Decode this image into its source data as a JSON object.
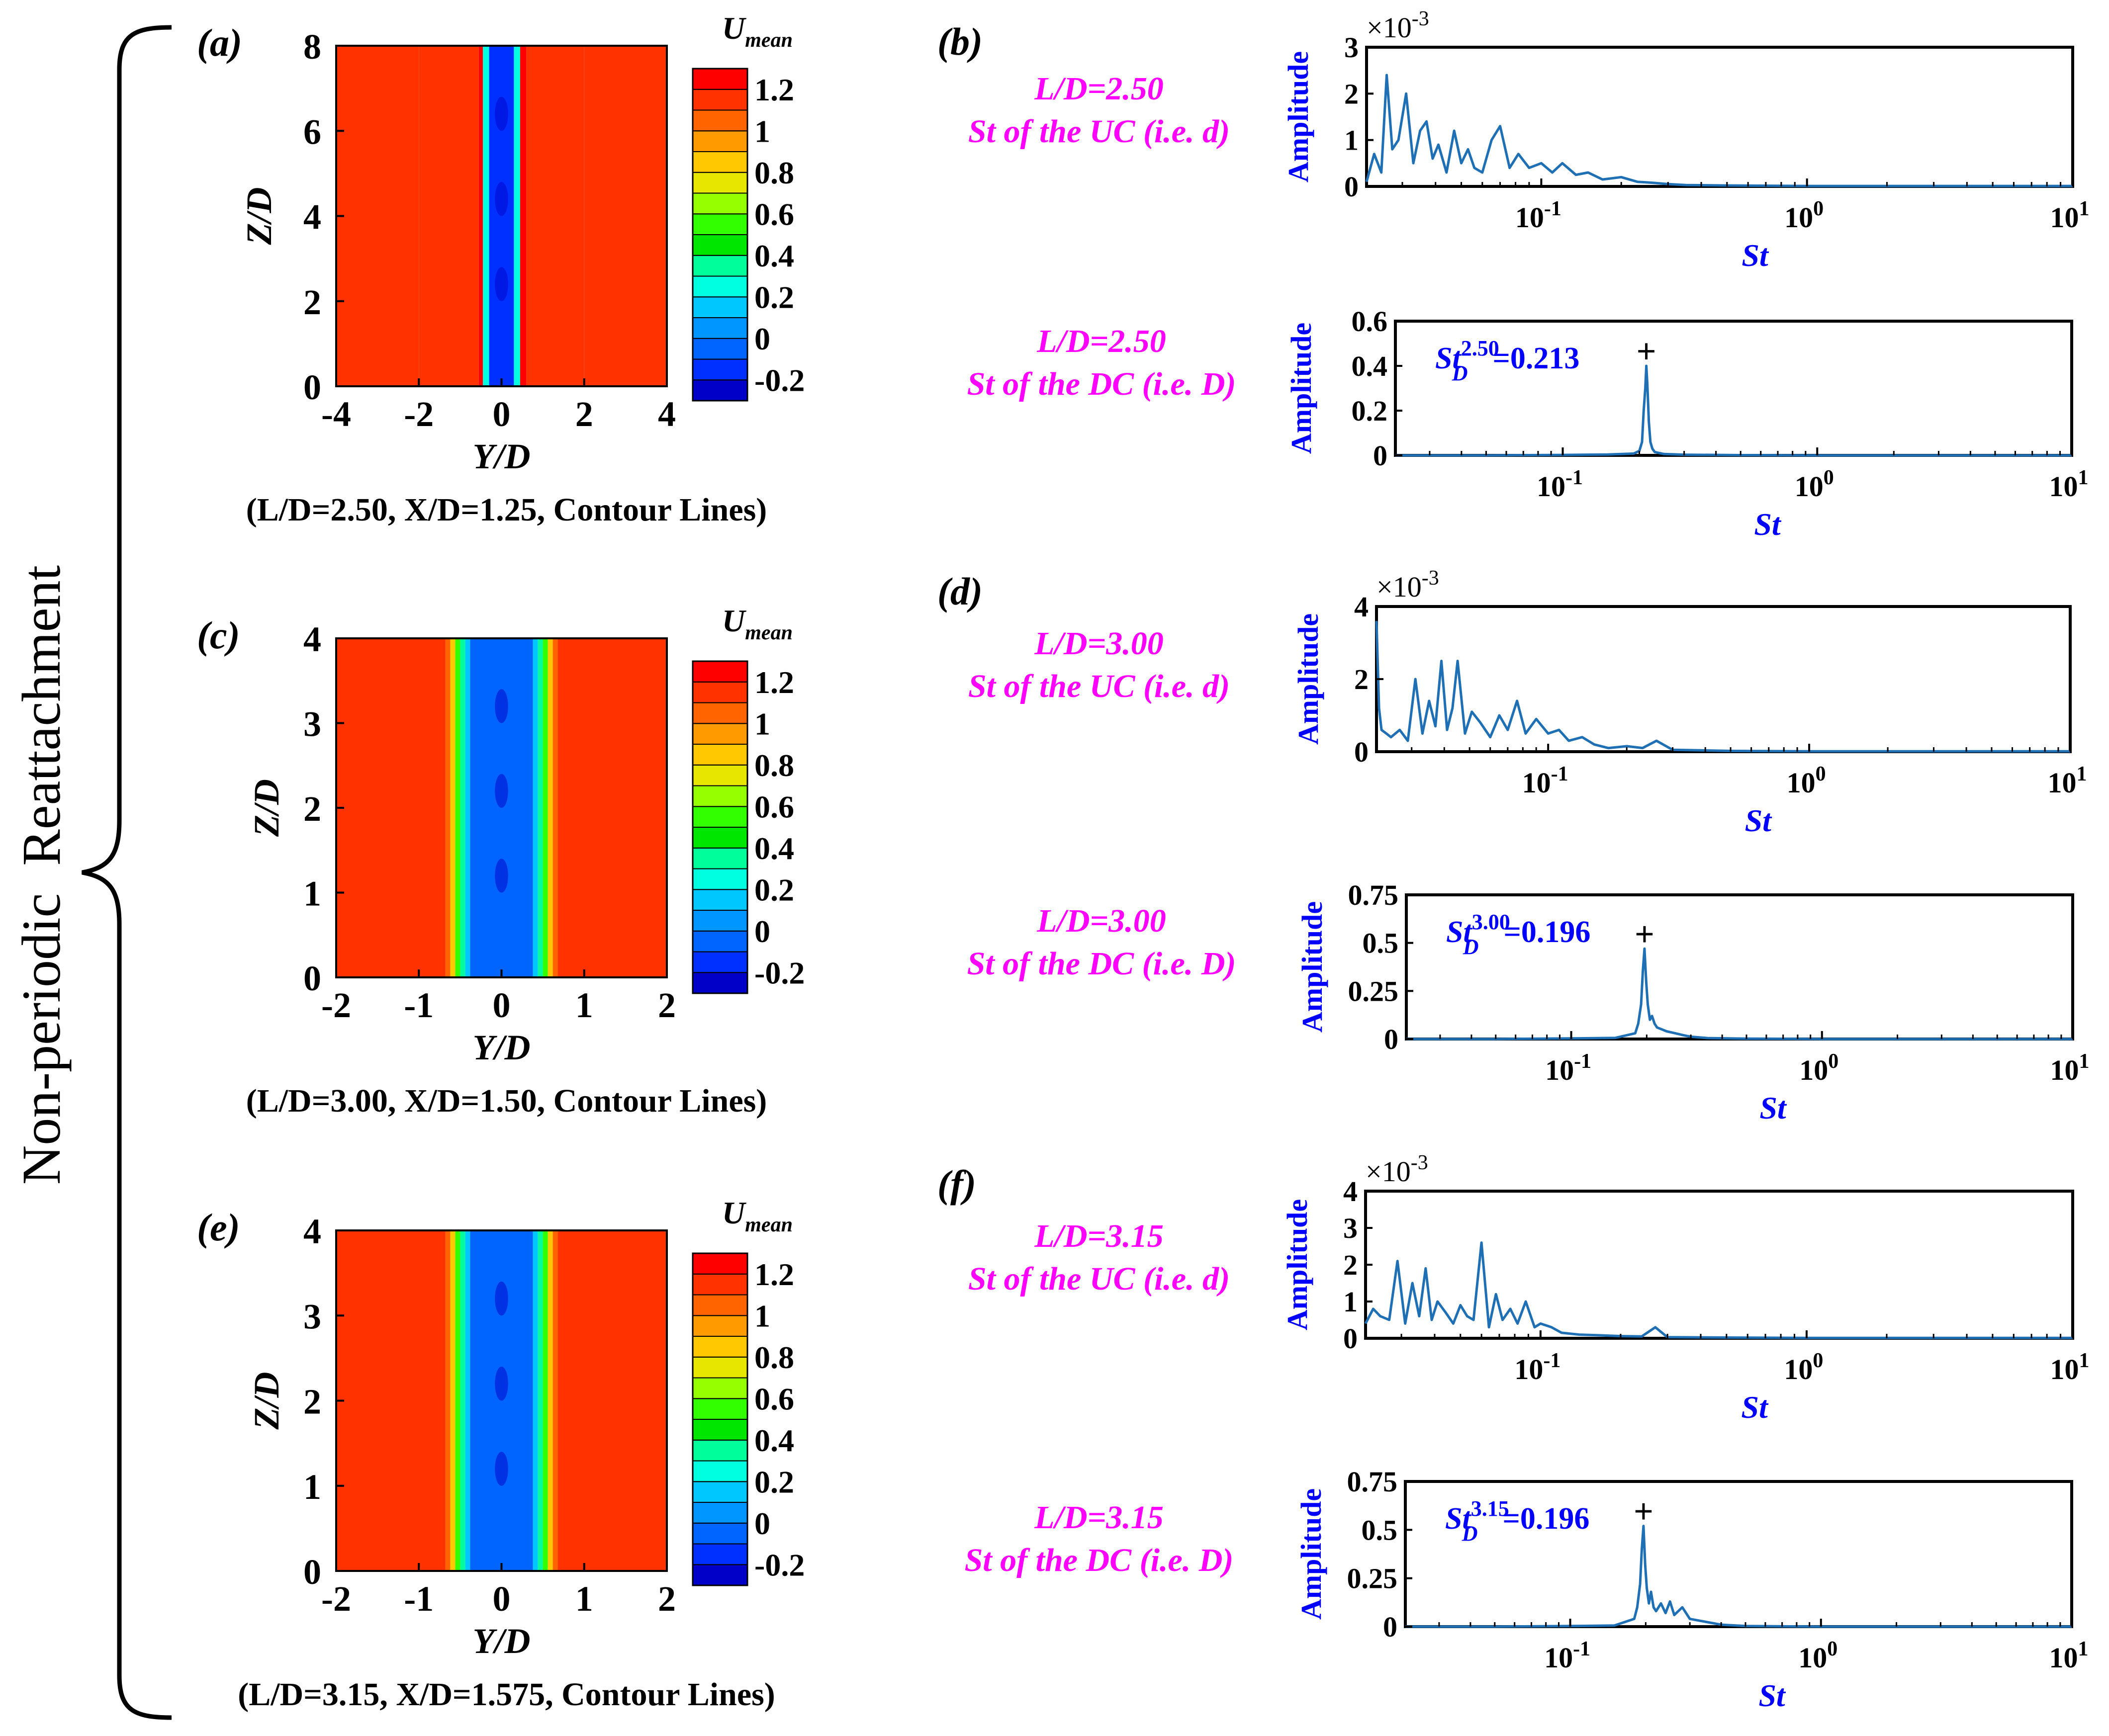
{
  "side_label": "Non-periodic  Reattachment",
  "colors": {
    "magenta": "#ff00ff",
    "blue_text": "#0000ff",
    "spectrum_line": "#1f6fb5",
    "colorbar": [
      "#0000c8",
      "#0030ff",
      "#0064ff",
      "#0096ff",
      "#00c8ff",
      "#00ffe0",
      "#00ff9b",
      "#00e600",
      "#32ff00",
      "#96ff00",
      "#e6e600",
      "#ffc800",
      "#ff9b00",
      "#ff6400",
      "#ff3200",
      "#ff0000"
    ]
  },
  "chart_data": [
    {
      "id": "a",
      "panel_label": "(a)",
      "type": "heatmap",
      "title": "",
      "xlabel": "Y/D",
      "ylabel": "Z/D",
      "xlim": [
        -4,
        4
      ],
      "ylim": [
        0,
        8
      ],
      "xticks": [
        "-4",
        "-2",
        "0",
        "2",
        "4"
      ],
      "xtick_values": [
        -4,
        -2,
        0,
        2,
        4
      ],
      "yticks": [
        "0",
        "2",
        "4",
        "6",
        "8"
      ],
      "ytick_values": [
        0,
        2,
        4,
        6,
        8
      ],
      "caption": "(L/D=2.50, X/D=1.25, Contour Lines)",
      "colorbar": {
        "label": "U",
        "label_sub": "mean",
        "ticks": [
          "1.2",
          "1",
          "0.8",
          "0.6",
          "0.4",
          "0.2",
          "0",
          "-0.2"
        ],
        "tick_values": [
          1.2,
          1.0,
          0.8,
          0.6,
          0.4,
          0.2,
          0.0,
          -0.2
        ],
        "range": [
          -0.3,
          1.3
        ],
        "levels": 16
      },
      "bands": [
        {
          "y0": -4,
          "y1": -2,
          "u": 1.12
        },
        {
          "y0": -2,
          "y1": -0.55,
          "u": 1.19
        },
        {
          "y0": -0.55,
          "y1": -0.45,
          "u": 1.3
        },
        {
          "y0": -0.45,
          "y1": -0.3,
          "u": 0.25
        },
        {
          "y0": -0.3,
          "y1": 0.3,
          "u": -0.1
        },
        {
          "y0": 0.3,
          "y1": 0.45,
          "u": 0.25
        },
        {
          "y0": 0.45,
          "y1": 0.6,
          "u": 1.3
        },
        {
          "y0": 0.6,
          "y1": 2,
          "u": 1.19
        },
        {
          "y0": 2,
          "y1": 4,
          "u": 1.12
        }
      ]
    },
    {
      "id": "c",
      "panel_label": "(c)",
      "type": "heatmap",
      "title": "",
      "xlabel": "Y/D",
      "ylabel": "Z/D",
      "xlim": [
        -2,
        2
      ],
      "ylim": [
        0,
        4
      ],
      "xticks": [
        "-2",
        "-1",
        "0",
        "1",
        "2"
      ],
      "xtick_values": [
        -2,
        -1,
        0,
        1,
        2
      ],
      "yticks": [
        "0",
        "1",
        "2",
        "3",
        "4"
      ],
      "ytick_values": [
        0,
        1,
        2,
        3,
        4
      ],
      "caption": "(L/D=3.00, X/D=1.50, Contour Lines)",
      "colorbar": {
        "label": "U",
        "label_sub": "mean",
        "ticks": [
          "1.2",
          "1",
          "0.8",
          "0.6",
          "0.4",
          "0.2",
          "0",
          "-0.2"
        ],
        "tick_values": [
          1.2,
          1.0,
          0.8,
          0.6,
          0.4,
          0.2,
          0.0,
          -0.2
        ],
        "range": [
          -0.3,
          1.3
        ],
        "levels": 16
      },
      "bands": [
        {
          "y0": -2,
          "y1": -0.68,
          "u": 1.19
        },
        {
          "y0": -0.68,
          "y1": -0.62,
          "u": 1.02
        },
        {
          "y0": -0.62,
          "y1": -0.56,
          "u": 0.85
        },
        {
          "y0": -0.56,
          "y1": -0.5,
          "u": 0.6
        },
        {
          "y0": -0.5,
          "y1": -0.44,
          "u": 0.35
        },
        {
          "y0": -0.44,
          "y1": -0.38,
          "u": 0.15
        },
        {
          "y0": -0.38,
          "y1": 0.38,
          "u": -0.05
        },
        {
          "y0": 0.38,
          "y1": 0.44,
          "u": 0.15
        },
        {
          "y0": 0.44,
          "y1": 0.5,
          "u": 0.35
        },
        {
          "y0": 0.5,
          "y1": 0.56,
          "u": 0.6
        },
        {
          "y0": 0.56,
          "y1": 0.62,
          "u": 0.85
        },
        {
          "y0": 0.62,
          "y1": 0.68,
          "u": 1.02
        },
        {
          "y0": 0.68,
          "y1": 2,
          "u": 1.19
        }
      ]
    },
    {
      "id": "e",
      "panel_label": "(e)",
      "type": "heatmap",
      "title": "",
      "xlabel": "Y/D",
      "ylabel": "Z/D",
      "xlim": [
        -2,
        2
      ],
      "ylim": [
        0,
        4
      ],
      "xticks": [
        "-2",
        "-1",
        "0",
        "1",
        "2"
      ],
      "xtick_values": [
        -2,
        -1,
        0,
        1,
        2
      ],
      "yticks": [
        "0",
        "1",
        "2",
        "3",
        "4"
      ],
      "ytick_values": [
        0,
        1,
        2,
        3,
        4
      ],
      "caption": "(L/D=3.15, X/D=1.575, Contour Lines)",
      "colorbar": {
        "label": "U",
        "label_sub": "mean",
        "ticks": [
          "1.2",
          "1",
          "0.8",
          "0.6",
          "0.4",
          "0.2",
          "0",
          "-0.2"
        ],
        "tick_values": [
          1.2,
          1.0,
          0.8,
          0.6,
          0.4,
          0.2,
          0.0,
          -0.2
        ],
        "range": [
          -0.3,
          1.3
        ],
        "levels": 16
      },
      "bands": [
        {
          "y0": -2,
          "y1": -0.68,
          "u": 1.19
        },
        {
          "y0": -0.68,
          "y1": -0.62,
          "u": 1.02
        },
        {
          "y0": -0.62,
          "y1": -0.56,
          "u": 0.85
        },
        {
          "y0": -0.56,
          "y1": -0.5,
          "u": 0.6
        },
        {
          "y0": -0.5,
          "y1": -0.44,
          "u": 0.35
        },
        {
          "y0": -0.44,
          "y1": -0.38,
          "u": 0.15
        },
        {
          "y0": -0.38,
          "y1": 0.38,
          "u": -0.05
        },
        {
          "y0": 0.38,
          "y1": 0.44,
          "u": 0.15
        },
        {
          "y0": 0.44,
          "y1": 0.5,
          "u": 0.35
        },
        {
          "y0": 0.5,
          "y1": 0.56,
          "u": 0.6
        },
        {
          "y0": 0.56,
          "y1": 0.62,
          "u": 0.85
        },
        {
          "y0": 0.62,
          "y1": 0.68,
          "u": 1.02
        },
        {
          "y0": 0.68,
          "y1": 2,
          "u": 1.19
        }
      ]
    },
    {
      "id": "b1",
      "panel_label": "(b)",
      "type": "line",
      "title": "",
      "xlabel": "St",
      "ylabel": "Amplitude",
      "x_scale": "log",
      "xlim": [
        0.022,
        10
      ],
      "ylim": [
        0,
        3
      ],
      "xticks": [
        "10^-1",
        "10^0",
        "10^1"
      ],
      "xtick_values": [
        0.1,
        1,
        10
      ],
      "yticks": [
        "0",
        "1",
        "2",
        "3"
      ],
      "ytick_values": [
        0,
        1,
        2,
        3
      ],
      "multiplier": "×10^-3",
      "case_label": [
        "L/D=2.50",
        "St of the UC (i.e. d)"
      ],
      "x": [
        0.022,
        0.0235,
        0.025,
        0.0262,
        0.0275,
        0.029,
        0.031,
        0.033,
        0.035,
        0.037,
        0.039,
        0.041,
        0.044,
        0.047,
        0.05,
        0.053,
        0.056,
        0.06,
        0.065,
        0.07,
        0.076,
        0.082,
        0.09,
        0.1,
        0.11,
        0.12,
        0.135,
        0.15,
        0.17,
        0.2,
        0.23,
        0.26,
        0.3,
        0.35,
        0.5,
        1,
        10
      ],
      "y": [
        0.1,
        0.7,
        0.3,
        2.4,
        0.8,
        1.0,
        2.0,
        0.5,
        1.2,
        1.4,
        0.6,
        0.9,
        0.3,
        1.2,
        0.5,
        0.8,
        0.4,
        0.3,
        1.0,
        1.3,
        0.4,
        0.7,
        0.4,
        0.5,
        0.3,
        0.5,
        0.25,
        0.3,
        0.15,
        0.2,
        0.1,
        0.08,
        0.05,
        0.03,
        0.02,
        0.01,
        0.01
      ]
    },
    {
      "id": "b2",
      "panel_label": "",
      "type": "line",
      "title": "",
      "xlabel": "St",
      "ylabel": "Amplitude",
      "x_scale": "log",
      "xlim": [
        0.022,
        10
      ],
      "ylim": [
        0,
        0.6
      ],
      "xticks": [
        "10^-1",
        "10^0",
        "10^1"
      ],
      "xtick_values": [
        0.1,
        1,
        10
      ],
      "yticks": [
        "0",
        "0.2",
        "0.4",
        "0.6"
      ],
      "ytick_values": [
        0,
        0.2,
        0.4,
        0.6
      ],
      "multiplier": "",
      "case_label": [
        "L/D=2.50",
        "St of the DC (i.e. D)"
      ],
      "annotation": {
        "sup": "2.50",
        "value": "=0.213",
        "peak_x": 0.213,
        "peak_y": 0.4
      },
      "x": [
        0.022,
        0.05,
        0.1,
        0.15,
        0.19,
        0.2,
        0.205,
        0.208,
        0.211,
        0.213,
        0.215,
        0.218,
        0.221,
        0.225,
        0.23,
        0.25,
        0.3,
        0.5,
        1,
        10
      ],
      "y": [
        0.0,
        0.0,
        0.002,
        0.004,
        0.008,
        0.02,
        0.06,
        0.2,
        0.3,
        0.4,
        0.32,
        0.15,
        0.06,
        0.03,
        0.015,
        0.006,
        0.003,
        0.001,
        0.0,
        0.0
      ]
    },
    {
      "id": "d1",
      "panel_label": "(d)",
      "type": "line",
      "title": "",
      "xlabel": "St",
      "ylabel": "Amplitude",
      "x_scale": "log",
      "xlim": [
        0.022,
        10
      ],
      "ylim": [
        0,
        4
      ],
      "xticks": [
        "10^-1",
        "10^0",
        "10^1"
      ],
      "xtick_values": [
        0.1,
        1,
        10
      ],
      "yticks": [
        "0",
        "2",
        "4"
      ],
      "ytick_values": [
        0,
        2,
        4
      ],
      "multiplier": "×10^-3",
      "case_label": [
        "L/D=3.00",
        "St of the UC (i.e. d)"
      ],
      "x": [
        0.022,
        0.0225,
        0.023,
        0.024,
        0.025,
        0.027,
        0.029,
        0.031,
        0.033,
        0.035,
        0.037,
        0.039,
        0.041,
        0.043,
        0.045,
        0.048,
        0.051,
        0.055,
        0.06,
        0.065,
        0.07,
        0.076,
        0.082,
        0.09,
        0.1,
        0.11,
        0.12,
        0.135,
        0.15,
        0.17,
        0.2,
        0.23,
        0.26,
        0.3,
        0.5,
        1,
        10
      ],
      "y": [
        3.6,
        1.2,
        0.6,
        0.5,
        0.4,
        0.6,
        0.3,
        2.0,
        0.5,
        1.4,
        0.7,
        2.5,
        0.6,
        1.2,
        2.5,
        0.5,
        1.1,
        0.8,
        0.4,
        1.0,
        0.6,
        1.4,
        0.5,
        0.9,
        0.5,
        0.6,
        0.3,
        0.4,
        0.2,
        0.1,
        0.15,
        0.1,
        0.3,
        0.05,
        0.02,
        0.01,
        0.01
      ]
    },
    {
      "id": "d2",
      "panel_label": "",
      "type": "line",
      "title": "",
      "xlabel": "St",
      "ylabel": "Amplitude",
      "x_scale": "log",
      "xlim": [
        0.022,
        10
      ],
      "ylim": [
        0,
        0.75
      ],
      "xticks": [
        "10^-1",
        "10^0",
        "10^1"
      ],
      "xtick_values": [
        0.1,
        1,
        10
      ],
      "yticks": [
        "0",
        "0.25",
        "0.5",
        "0.75"
      ],
      "ytick_values": [
        0,
        0.25,
        0.5,
        0.75
      ],
      "multiplier": "",
      "case_label": [
        "L/D=3.00",
        "St of the DC (i.e. D)"
      ],
      "annotation": {
        "sup": "3.00",
        "value": "=0.196",
        "peak_x": 0.196,
        "peak_y": 0.47
      },
      "x": [
        0.022,
        0.05,
        0.1,
        0.15,
        0.18,
        0.185,
        0.19,
        0.193,
        0.196,
        0.199,
        0.202,
        0.206,
        0.21,
        0.215,
        0.22,
        0.23,
        0.24,
        0.26,
        0.28,
        0.3,
        0.35,
        0.5,
        1,
        10
      ],
      "y": [
        0.0,
        0.0,
        0.003,
        0.006,
        0.03,
        0.08,
        0.18,
        0.35,
        0.47,
        0.3,
        0.18,
        0.1,
        0.12,
        0.08,
        0.06,
        0.05,
        0.04,
        0.03,
        0.02,
        0.012,
        0.005,
        0.002,
        0.0,
        0.0
      ]
    },
    {
      "id": "f1",
      "panel_label": "(f)",
      "type": "line",
      "title": "",
      "xlabel": "St",
      "ylabel": "Amplitude",
      "x_scale": "log",
      "xlim": [
        0.022,
        10
      ],
      "ylim": [
        0,
        4
      ],
      "xticks": [
        "10^-1",
        "10^0",
        "10^1"
      ],
      "xtick_values": [
        0.1,
        1,
        10
      ],
      "yticks": [
        "0",
        "1",
        "2",
        "3",
        "4"
      ],
      "ytick_values": [
        0,
        1,
        2,
        3,
        4
      ],
      "multiplier": "×10^-3",
      "case_label": [
        "L/D=3.15",
        "St of the UC (i.e. d)"
      ],
      "x": [
        0.022,
        0.0235,
        0.025,
        0.027,
        0.029,
        0.031,
        0.033,
        0.035,
        0.037,
        0.039,
        0.041,
        0.044,
        0.047,
        0.05,
        0.053,
        0.056,
        0.06,
        0.064,
        0.068,
        0.072,
        0.077,
        0.082,
        0.088,
        0.095,
        0.1,
        0.11,
        0.12,
        0.14,
        0.17,
        0.2,
        0.24,
        0.27,
        0.3,
        0.5,
        1,
        10
      ],
      "y": [
        0.4,
        0.8,
        0.6,
        0.5,
        2.1,
        0.4,
        1.5,
        0.6,
        1.9,
        0.5,
        1.0,
        0.7,
        0.4,
        0.9,
        0.6,
        0.5,
        2.6,
        0.3,
        1.2,
        0.5,
        0.8,
        0.4,
        1.0,
        0.3,
        0.4,
        0.3,
        0.15,
        0.1,
        0.08,
        0.06,
        0.05,
        0.3,
        0.03,
        0.02,
        0.01,
        0.01
      ]
    },
    {
      "id": "f2",
      "panel_label": "",
      "type": "line",
      "title": "",
      "xlabel": "St",
      "ylabel": "Amplitude",
      "x_scale": "log",
      "xlim": [
        0.022,
        10
      ],
      "ylim": [
        0,
        0.75
      ],
      "xticks": [
        "10^-1",
        "10^0",
        "10^1"
      ],
      "xtick_values": [
        0.1,
        1,
        10
      ],
      "yticks": [
        "0",
        "0.25",
        "0.5",
        "0.75"
      ],
      "ytick_values": [
        0,
        0.25,
        0.5,
        0.75
      ],
      "multiplier": "",
      "case_label": [
        "L/D=3.15",
        "St of the DC (i.e. D)"
      ],
      "annotation": {
        "sup": "3.15",
        "value": "=0.196",
        "peak_x": 0.196,
        "peak_y": 0.52
      },
      "x": [
        0.022,
        0.05,
        0.1,
        0.15,
        0.18,
        0.185,
        0.19,
        0.193,
        0.196,
        0.199,
        0.202,
        0.206,
        0.21,
        0.215,
        0.22,
        0.23,
        0.24,
        0.25,
        0.26,
        0.28,
        0.3,
        0.33,
        0.4,
        0.5,
        1,
        10
      ],
      "y": [
        0.0,
        0.0,
        0.003,
        0.006,
        0.04,
        0.1,
        0.22,
        0.4,
        0.52,
        0.32,
        0.2,
        0.12,
        0.18,
        0.1,
        0.08,
        0.12,
        0.07,
        0.13,
        0.06,
        0.1,
        0.04,
        0.03,
        0.01,
        0.003,
        0.0,
        0.0
      ]
    }
  ]
}
